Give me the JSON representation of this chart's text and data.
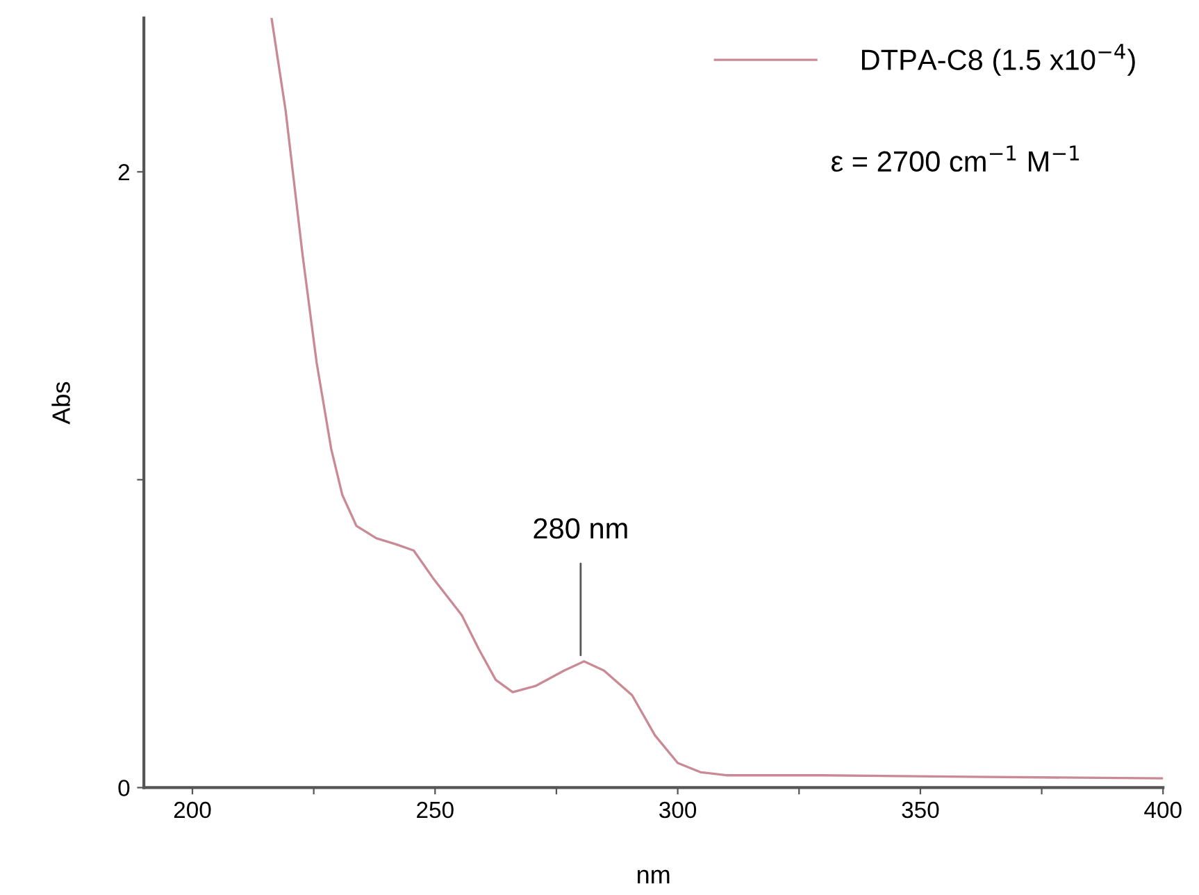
{
  "chart_data": {
    "type": "line",
    "xlabel": "nm",
    "ylabel": "Abs",
    "xlim": [
      190,
      400
    ],
    "ylim": [
      0,
      2.5
    ],
    "xticks": [
      200,
      {
        "value": 225,
        "label": null
      },
      250,
      {
        "value": 275,
        "label": null
      },
      300,
      {
        "value": 325,
        "label": null
      },
      350,
      {
        "value": 375,
        "label": null
      },
      400
    ],
    "yticks": [
      0,
      {
        "value": 1,
        "label": null
      },
      2
    ],
    "grid": false,
    "legend": "top right",
    "marker": "none",
    "line_style": "solid",
    "series": [
      {
        "name": "DTPA-C8 (1.5 x10$^{−4}$)",
        "color": "#c98a96",
        "x": [
          216.3,
          219.2,
          222.7,
          225.6,
          228.6,
          230.9,
          233.8,
          237.9,
          242.0,
          245.6,
          249.6,
          255.5,
          259.0,
          262.5,
          266.0,
          270.7,
          276.6,
          280.7,
          284.8,
          290.6,
          295.3,
          300.0,
          304.7,
          310,
          330,
          360,
          400
        ],
        "values": [
          2.5,
          2.2,
          1.73,
          1.38,
          1.1,
          0.95,
          0.85,
          0.81,
          0.79,
          0.77,
          0.68,
          0.56,
          0.45,
          0.35,
          0.31,
          0.33,
          0.38,
          0.41,
          0.38,
          0.3,
          0.17,
          0.08,
          0.05,
          0.04,
          0.04,
          0.035,
          0.03
        ]
      }
    ],
    "annotations": [
      {
        "text": "280 nm",
        "x": 280,
        "y": 0.41
      },
      "ε = 2700 cm$^{−1}$ M$^{−1}$"
    ]
  }
}
